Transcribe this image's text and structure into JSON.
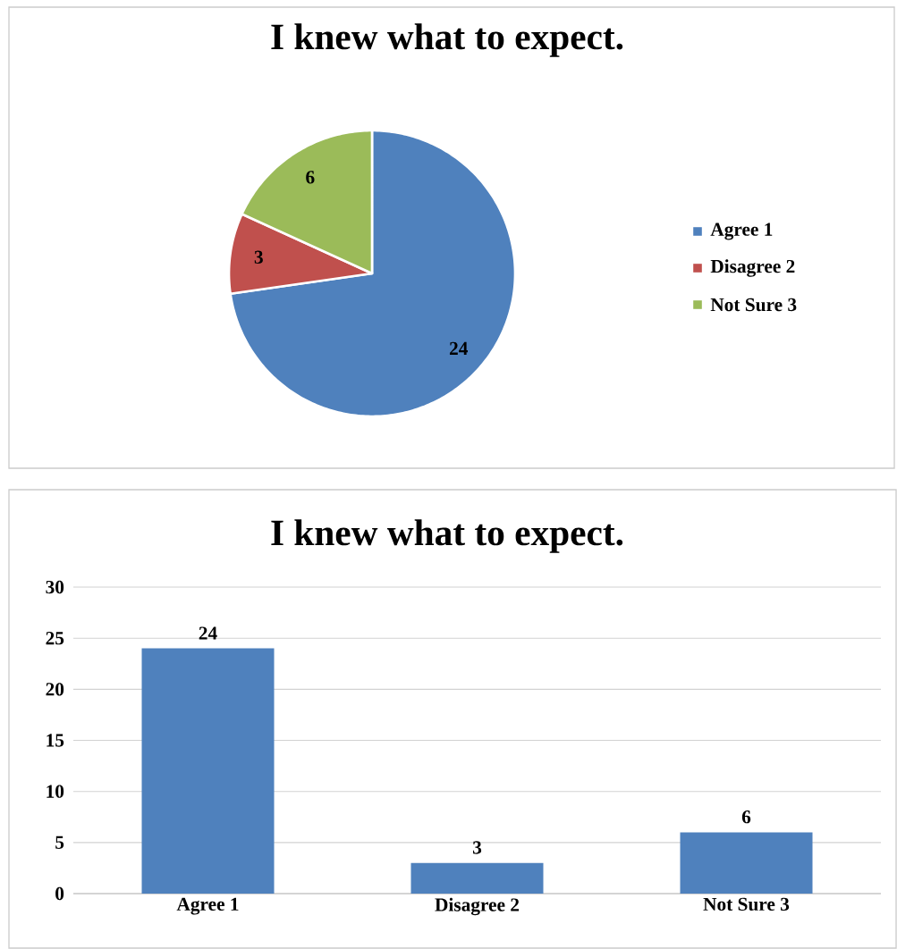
{
  "chart_data": [
    {
      "type": "pie",
      "title": "I knew what to expect.",
      "categories": [
        "Agree 1",
        "Disagree 2",
        "Not Sure 3"
      ],
      "values": [
        24,
        3,
        6
      ],
      "colors": [
        "#4f81bd",
        "#c0504d",
        "#9bbb59"
      ],
      "data_labels": true,
      "legend": "right"
    },
    {
      "type": "bar",
      "title": "I knew what to expect.",
      "categories": [
        "Agree 1",
        "Disagree 2",
        "Not Sure 3"
      ],
      "values": [
        24,
        3,
        6
      ],
      "color": "#4f81bd",
      "ylim": [
        0,
        30
      ],
      "yticks": [
        0,
        5,
        10,
        15,
        20,
        25,
        30
      ],
      "grid": "y",
      "data_labels": true
    }
  ]
}
